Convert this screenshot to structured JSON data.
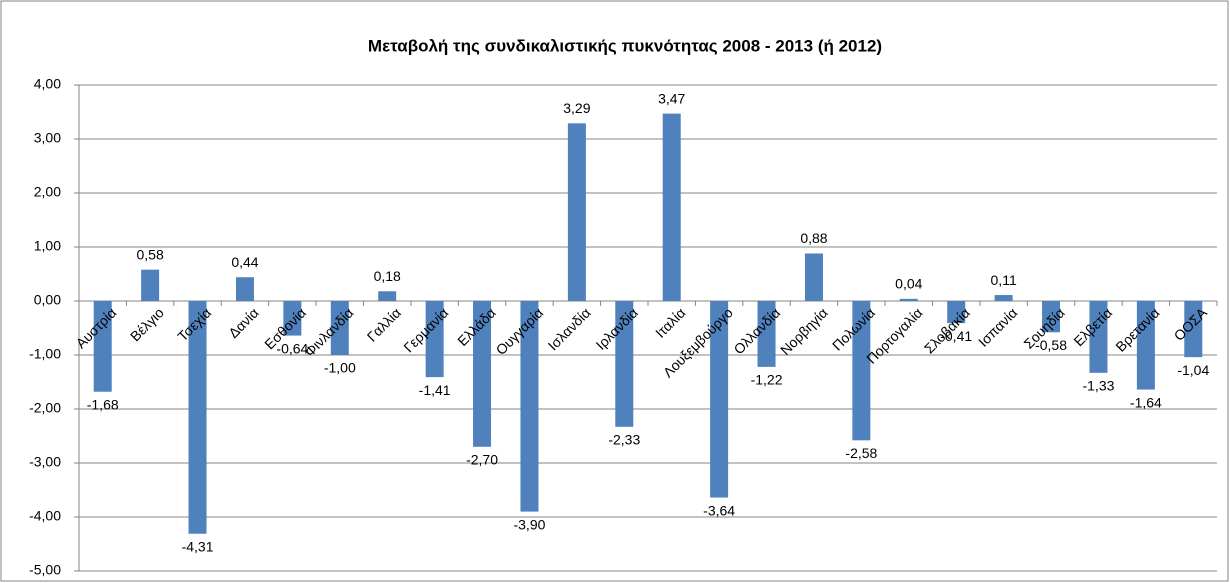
{
  "chart_data": {
    "type": "bar",
    "title": "Μεταβολή της συνδικαλιστικής πυκνότητας 2008 - 2013 (ή 2012)",
    "categories": [
      "Αυστρία",
      "Βέλγιο",
      "Τσεχία",
      "Δανία",
      "Εσθονία",
      "Φινλανδία",
      "Γαλλία",
      "Γερμανία",
      "Ελλάδα",
      "Ουγγαρία",
      "Ισλανδία",
      "Ιρλανδία",
      "Ιταλία",
      "Λουξεμβούργο",
      "Ολλανδία",
      "Νορβηγία",
      "Πολωνία",
      "Πορτογαλία",
      "Σλοβακία",
      "Ισπανία",
      "Σουηδία",
      "Ελβετία",
      "Βρετανία",
      "ΟΟΣΑ"
    ],
    "values": [
      -1.68,
      0.58,
      -4.31,
      0.44,
      -0.64,
      -1.0,
      0.18,
      -1.41,
      -2.7,
      -3.9,
      3.29,
      -2.33,
      3.47,
      -3.64,
      -1.22,
      0.88,
      -2.58,
      0.04,
      -0.41,
      0.11,
      -0.58,
      -1.33,
      -1.64,
      -1.04
    ],
    "value_labels": [
      "-1,68",
      "0,58",
      "-4,31",
      "0,44",
      "-0,64",
      "-1,00",
      "0,18",
      "-1,41",
      "-2,70",
      "-3,90",
      "3,29",
      "-2,33",
      "3,47",
      "-3,64",
      "-1,22",
      "0,88",
      "-2,58",
      "0,04",
      "-0,41",
      "0,11",
      "-0,58",
      "-1,33",
      "-1,64",
      "-1,04"
    ],
    "color": "#4f81bd",
    "ylim": [
      -5,
      4
    ],
    "yticks": [
      {
        "value": -5,
        "label": "-5,00"
      },
      {
        "value": -4,
        "label": "-4,00"
      },
      {
        "value": -3,
        "label": "-3,00"
      },
      {
        "value": -2,
        "label": "-2,00"
      },
      {
        "value": -1,
        "label": "-1,00"
      },
      {
        "value": 0,
        "label": "0,00"
      },
      {
        "value": 1,
        "label": "1,00"
      },
      {
        "value": 2,
        "label": "2,00"
      },
      {
        "value": 3,
        "label": "3,00"
      },
      {
        "value": 4,
        "label": "4,00"
      }
    ],
    "grid": true
  }
}
